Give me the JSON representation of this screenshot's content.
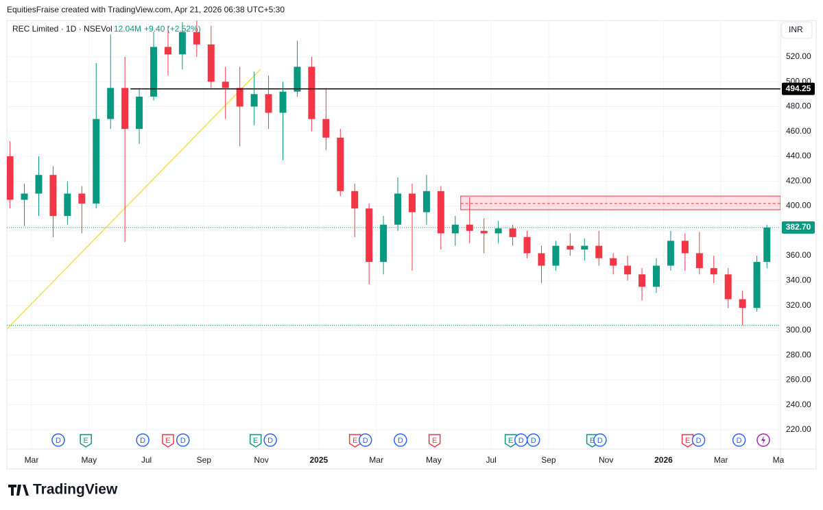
{
  "header": {
    "credit": "EquitiesFraise created with TradingView.com, Apr 21, 2026 06:38 UTC+5:30"
  },
  "footer": {
    "brand": "TradingView"
  },
  "chart_data": {
    "type": "candlestick",
    "symbol": "REC Limited · 1D · NSE",
    "volume_label": "Vol",
    "volume": "12.04M",
    "change": "+9.40 (+2.52%)",
    "currency": "INR",
    "up_color": "#089981",
    "down_color": "#f23645",
    "grid": true,
    "xlim": [
      1.14,
      28
    ],
    "ylim": [
      204.5,
      549.2
    ],
    "yticks": [
      {
        "value": 220,
        "label": "220.00"
      },
      {
        "value": 240,
        "label": "240.00"
      },
      {
        "value": 260,
        "label": "260.00"
      },
      {
        "value": 280,
        "label": "280.00"
      },
      {
        "value": 300,
        "label": "300.00"
      },
      {
        "value": 320,
        "label": "320.00"
      },
      {
        "value": 340,
        "label": "340.00"
      },
      {
        "value": 360,
        "label": "360.00"
      },
      {
        "value": 380,
        "label": "380.00"
      },
      {
        "value": 400,
        "label": "400.00"
      },
      {
        "value": 420,
        "label": "420.00"
      },
      {
        "value": 440,
        "label": "440.00"
      },
      {
        "value": 460,
        "label": "460.00"
      },
      {
        "value": 480,
        "label": "480.00"
      },
      {
        "value": 500,
        "label": "500.00"
      },
      {
        "value": 520,
        "label": "520.00"
      }
    ],
    "xticks": [
      {
        "value": 2,
        "label": "Mar"
      },
      {
        "value": 4,
        "label": "May"
      },
      {
        "value": 6,
        "label": "Jul"
      },
      {
        "value": 8,
        "label": "Sep"
      },
      {
        "value": 10,
        "label": "Nov"
      },
      {
        "value": 12,
        "label": "2025"
      },
      {
        "value": 14,
        "label": "Mar"
      },
      {
        "value": 16,
        "label": "May"
      },
      {
        "value": 18,
        "label": "Jul"
      },
      {
        "value": 20,
        "label": "Sep"
      },
      {
        "value": 22,
        "label": "Nov"
      },
      {
        "value": 24,
        "label": "2026"
      },
      {
        "value": 26,
        "label": "Mar"
      },
      {
        "value": 28,
        "label": "Ma"
      }
    ],
    "x": [
      1.25,
      1.75,
      2.25,
      2.75,
      3.25,
      3.75,
      4.25,
      4.75,
      5.25,
      5.75,
      6.25,
      6.75,
      7.25,
      7.75,
      8.25,
      8.75,
      9.25,
      9.75,
      10.25,
      10.75,
      11.25,
      11.75,
      12.25,
      12.75,
      13.25,
      13.75,
      14.25,
      14.75,
      15.25,
      15.75,
      16.25,
      16.75,
      17.25,
      17.75,
      18.25,
      18.75,
      19.25,
      19.75,
      20.25,
      20.75,
      21.25,
      21.75,
      22.25,
      22.75,
      23.25,
      23.75,
      24.25,
      24.75,
      25.25,
      25.75,
      26.25,
      26.75,
      27.25,
      27.6
    ],
    "open": [
      440,
      405,
      410,
      425,
      392,
      410,
      402,
      470,
      495,
      462,
      488,
      528,
      522,
      540,
      530,
      500,
      495,
      480,
      490,
      475,
      492,
      512,
      470,
      455,
      412,
      398,
      355,
      385,
      410,
      395,
      412,
      378,
      385,
      380,
      378,
      382,
      375,
      362,
      352,
      368,
      365,
      368,
      358,
      352,
      345,
      335,
      352,
      372,
      362,
      350,
      345,
      325,
      318,
      355
    ],
    "high": [
      452,
      418,
      440,
      432,
      420,
      416,
      515,
      538,
      520,
      495,
      540,
      545,
      548,
      550,
      545,
      512,
      512,
      508,
      505,
      500,
      533,
      520,
      495,
      462,
      418,
      402,
      392,
      423,
      418,
      425,
      416,
      392,
      407,
      390,
      388,
      385,
      380,
      368,
      372,
      378,
      374,
      380,
      362,
      360,
      350,
      358,
      380,
      378,
      379,
      360,
      350,
      332,
      360,
      385
    ],
    "low": [
      398,
      384,
      392,
      375,
      385,
      378,
      398,
      462,
      371,
      450,
      485,
      505,
      510,
      520,
      495,
      470,
      448,
      465,
      462,
      437,
      488,
      460,
      445,
      408,
      375,
      337,
      345,
      380,
      348,
      385,
      365,
      368,
      370,
      362,
      370,
      368,
      358,
      338,
      348,
      360,
      356,
      352,
      345,
      340,
      324,
      330,
      348,
      348,
      345,
      338,
      318,
      304,
      315,
      350
    ],
    "close": [
      405,
      410,
      425,
      392,
      410,
      402,
      470,
      495,
      462,
      488,
      528,
      522,
      540,
      530,
      500,
      495,
      480,
      490,
      475,
      492,
      512,
      470,
      455,
      412,
      398,
      355,
      385,
      410,
      395,
      412,
      378,
      385,
      380,
      378,
      382,
      375,
      362,
      352,
      368,
      365,
      368,
      358,
      352,
      345,
      335,
      352,
      372,
      362,
      350,
      345,
      325,
      318,
      355,
      382.7
    ],
    "hline": {
      "value": 494.25,
      "label": "494.25",
      "x": 5.44,
      "color": "#000000"
    },
    "last_price": {
      "value": 382.7,
      "label": "382.70",
      "color": "#089981"
    },
    "low_line": {
      "value": 304,
      "color": "#089981"
    },
    "trendline": {
      "x": [
        1.14,
        9.97
      ],
      "y": [
        301,
        510
      ],
      "color": "#f5e04a"
    },
    "zone": {
      "x": 16.94,
      "top": 408,
      "bottom": 397,
      "mid": 402,
      "color": "#f23645"
    },
    "events": [
      {
        "label": "D",
        "x": 2.93,
        "color": "#2962ff"
      },
      {
        "label": "E",
        "x": 3.89,
        "color": "#089981"
      },
      {
        "label": "D",
        "x": 5.87,
        "color": "#2962ff"
      },
      {
        "label": "E",
        "x": 6.75,
        "color": "#f23645"
      },
      {
        "label": "D",
        "x": 7.27,
        "color": "#2962ff"
      },
      {
        "label": "E",
        "x": 9.8,
        "color": "#089981"
      },
      {
        "label": "D",
        "x": 10.31,
        "color": "#2962ff"
      },
      {
        "label": "E",
        "x": 13.26,
        "color": "#f23645"
      },
      {
        "label": "D",
        "x": 13.62,
        "color": "#2962ff"
      },
      {
        "label": "D",
        "x": 14.84,
        "color": "#2962ff"
      },
      {
        "label": "E",
        "x": 16.03,
        "color": "#f23645"
      },
      {
        "label": "E",
        "x": 18.68,
        "color": "#089981"
      },
      {
        "label": "D",
        "x": 19.04,
        "color": "#2962ff"
      },
      {
        "label": "D",
        "x": 19.47,
        "color": "#2962ff"
      },
      {
        "label": "E",
        "x": 21.52,
        "color": "#089981"
      },
      {
        "label": "D",
        "x": 21.79,
        "color": "#2962ff"
      },
      {
        "label": "E",
        "x": 24.84,
        "color": "#f23645"
      },
      {
        "label": "D",
        "x": 25.22,
        "color": "#2962ff"
      },
      {
        "label": "D",
        "x": 26.63,
        "color": "#2962ff"
      }
    ]
  }
}
